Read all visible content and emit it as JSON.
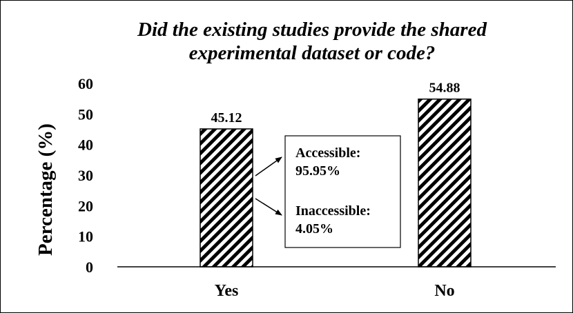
{
  "chart_data": {
    "type": "bar",
    "title_lines": [
      "Did the existing studies provide the shared",
      "experimental dataset or code?"
    ],
    "xlabel": "",
    "ylabel": "Percentage (%)",
    "ylim": [
      0,
      60
    ],
    "yticks": [
      "0",
      "10",
      "20",
      "30",
      "40",
      "50",
      "60"
    ],
    "grid": false,
    "categories": [
      "Yes",
      "No"
    ],
    "values": [
      45.12,
      54.88
    ],
    "data_labels": [
      "45.12",
      "54.88"
    ],
    "bar_pattern": "diagonal-hatch",
    "annotation": {
      "accessible_label": "Accessible:",
      "accessible_value": "95.95%",
      "inaccessible_label": "Inaccessible:",
      "inaccessible_value": "4.05%"
    }
  }
}
